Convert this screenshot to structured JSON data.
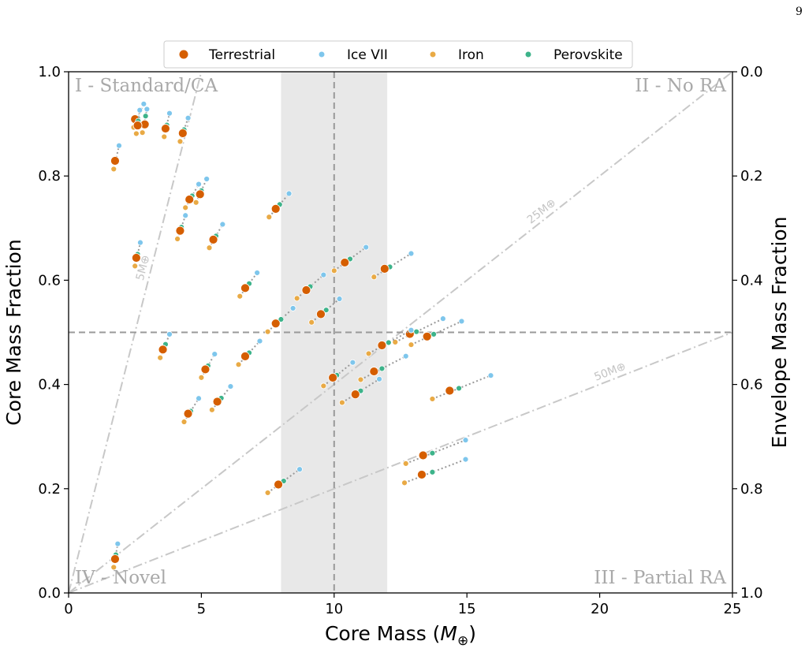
{
  "page_number": "9",
  "colors": {
    "Terrestrial": "#d55e00",
    "Ice VII": "#7ec6ec",
    "Iron": "#e9aa45",
    "Perovskite": "#3db38a",
    "guide": "#c8c8c8",
    "divider": "#999999",
    "band": "#e8e8e8"
  },
  "chart_data": {
    "type": "scatter",
    "xlabel": "Core Mass (M⊕)",
    "ylabel": "Core Mass Fraction",
    "y2label": "Envelope Mass Fraction",
    "xlim": [
      0,
      25
    ],
    "ylim": [
      0,
      1
    ],
    "y2lim": [
      1,
      0
    ],
    "x_ticks": [
      "0",
      "5",
      "10",
      "15",
      "20",
      "25"
    ],
    "y_ticks": [
      "0.0",
      "0.2",
      "0.4",
      "0.6",
      "0.8",
      "1.0"
    ],
    "y2_ticks": [
      "1.0",
      "0.8",
      "0.6",
      "0.4",
      "0.2",
      "0.0"
    ],
    "legend_position": "top-center",
    "legend": [
      "Terrestrial",
      "Ice VII",
      "Iron",
      "Perovskite"
    ],
    "vertical_line_x": 10,
    "horizontal_line_y": 0.5,
    "shaded_band_x": [
      8,
      12
    ],
    "quadrant_labels": [
      "I - Standard/CA",
      "II - No RA",
      "III - Partial RA",
      "IV - Novel"
    ],
    "guide_lines": [
      {
        "label": "5M⊕",
        "total_mass": 5
      },
      {
        "label": "25M⊕",
        "total_mass": 25
      },
      {
        "label": "50M⊕",
        "total_mass": 50
      }
    ],
    "groups": [
      {
        "y": 0.065,
        "Terrestrial": 1.75,
        "Ice VII": 1.85,
        "Iron": 1.7,
        "Perovskite": 1.78
      },
      {
        "y": 0.829,
        "Terrestrial": 1.75,
        "Ice VII": 1.9,
        "Iron": 1.7,
        "Perovskite": 1.78
      },
      {
        "y": 0.909,
        "Terrestrial": 2.5,
        "Ice VII": 2.83,
        "Iron": 2.45,
        "Perovskite": 2.6
      },
      {
        "y": 0.899,
        "Terrestrial": 2.87,
        "Ice VII": 2.95,
        "Iron": 2.78,
        "Perovskite": 2.9
      },
      {
        "y": 0.897,
        "Terrestrial": 2.6,
        "Ice VII": 2.68,
        "Iron": 2.55,
        "Perovskite": 2.62
      },
      {
        "y": 0.891,
        "Terrestrial": 3.65,
        "Ice VII": 3.8,
        "Iron": 3.6,
        "Perovskite": 3.7
      },
      {
        "y": 0.882,
        "Terrestrial": 4.3,
        "Ice VII": 4.5,
        "Iron": 4.2,
        "Perovskite": 4.35
      },
      {
        "y": 0.765,
        "Terrestrial": 4.95,
        "Ice VII": 5.2,
        "Iron": 4.8,
        "Perovskite": 5.0
      },
      {
        "y": 0.755,
        "Terrestrial": 4.55,
        "Ice VII": 4.9,
        "Iron": 4.4,
        "Perovskite": 4.65
      },
      {
        "y": 0.737,
        "Terrestrial": 7.8,
        "Ice VII": 8.3,
        "Iron": 7.55,
        "Perovskite": 7.95
      },
      {
        "y": 0.695,
        "Terrestrial": 4.2,
        "Ice VII": 4.4,
        "Iron": 4.1,
        "Perovskite": 4.25
      },
      {
        "y": 0.678,
        "Terrestrial": 5.45,
        "Ice VII": 5.8,
        "Iron": 5.3,
        "Perovskite": 5.55
      },
      {
        "y": 0.643,
        "Terrestrial": 2.55,
        "Ice VII": 2.7,
        "Iron": 2.5,
        "Perovskite": 2.6
      },
      {
        "y": 0.634,
        "Terrestrial": 10.4,
        "Ice VII": 11.2,
        "Iron": 10.0,
        "Perovskite": 10.6
      },
      {
        "y": 0.622,
        "Terrestrial": 11.9,
        "Ice VII": 12.9,
        "Iron": 11.5,
        "Perovskite": 12.1
      },
      {
        "y": 0.585,
        "Terrestrial": 6.65,
        "Ice VII": 7.1,
        "Iron": 6.45,
        "Perovskite": 6.8
      },
      {
        "y": 0.581,
        "Terrestrial": 8.95,
        "Ice VII": 9.6,
        "Iron": 8.6,
        "Perovskite": 9.1
      },
      {
        "y": 0.535,
        "Terrestrial": 9.5,
        "Ice VII": 10.2,
        "Iron": 9.15,
        "Perovskite": 9.7
      },
      {
        "y": 0.517,
        "Terrestrial": 7.8,
        "Ice VII": 8.45,
        "Iron": 7.5,
        "Perovskite": 8.0
      },
      {
        "y": 0.497,
        "Terrestrial": 12.85,
        "Ice VII": 14.1,
        "Iron": 12.3,
        "Perovskite": 13.1
      },
      {
        "y": 0.492,
        "Terrestrial": 13.5,
        "Ice VII": 14.8,
        "Iron": 12.9,
        "Perovskite": 13.75
      },
      {
        "y": 0.475,
        "Terrestrial": 11.8,
        "Ice VII": 12.9,
        "Iron": 11.3,
        "Perovskite": 12.05
      },
      {
        "y": 0.467,
        "Terrestrial": 3.55,
        "Ice VII": 3.8,
        "Iron": 3.45,
        "Perovskite": 3.65
      },
      {
        "y": 0.454,
        "Terrestrial": 6.65,
        "Ice VII": 7.2,
        "Iron": 6.4,
        "Perovskite": 6.8
      },
      {
        "y": 0.429,
        "Terrestrial": 5.15,
        "Ice VII": 5.5,
        "Iron": 5.0,
        "Perovskite": 5.25
      },
      {
        "y": 0.425,
        "Terrestrial": 11.5,
        "Ice VII": 12.7,
        "Iron": 11.0,
        "Perovskite": 11.8
      },
      {
        "y": 0.413,
        "Terrestrial": 9.95,
        "Ice VII": 10.7,
        "Iron": 9.6,
        "Perovskite": 10.1
      },
      {
        "y": 0.388,
        "Terrestrial": 14.35,
        "Ice VII": 15.9,
        "Iron": 13.7,
        "Perovskite": 14.7
      },
      {
        "y": 0.381,
        "Terrestrial": 10.8,
        "Ice VII": 11.7,
        "Iron": 10.3,
        "Perovskite": 11.0
      },
      {
        "y": 0.367,
        "Terrestrial": 5.6,
        "Ice VII": 6.1,
        "Iron": 5.4,
        "Perovskite": 5.75
      },
      {
        "y": 0.344,
        "Terrestrial": 4.5,
        "Ice VII": 4.9,
        "Iron": 4.35,
        "Perovskite": 4.6
      },
      {
        "y": 0.264,
        "Terrestrial": 13.35,
        "Ice VII": 14.95,
        "Iron": 12.7,
        "Perovskite": 13.7
      },
      {
        "y": 0.227,
        "Terrestrial": 13.3,
        "Ice VII": 14.95,
        "Iron": 12.65,
        "Perovskite": 13.7
      },
      {
        "y": 0.208,
        "Terrestrial": 7.9,
        "Ice VII": 8.7,
        "Iron": 7.5,
        "Perovskite": 8.1
      }
    ]
  }
}
